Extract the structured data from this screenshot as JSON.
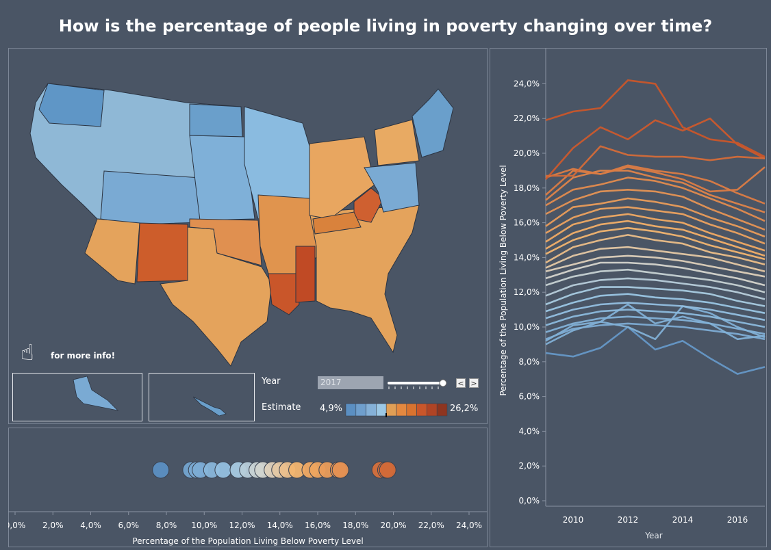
{
  "title": "How is the percentage of people living in poverty changing over time?",
  "info_text": "for more info!",
  "controls": {
    "year_label": "Year",
    "year_value": "2017",
    "estimate_label": "Estimate",
    "legend_min": "4,9%",
    "legend_max": "26,2%",
    "prev_symbol": "<",
    "next_symbol": ">"
  },
  "colors": {
    "background": "#4a5565",
    "low": "#5b8fc2",
    "mid_low": "#9cc8e5",
    "mid": "#d8d6cc",
    "mid_high": "#f4b36a",
    "high": "#c9562a",
    "legend": [
      "#5b8fc2",
      "#6f9fcd",
      "#85b1d8",
      "#9cc8e5",
      "#e09e55",
      "#e4883f",
      "#d9732f",
      "#c9562a",
      "#b04425",
      "#8e3520"
    ]
  },
  "chart_data": [
    {
      "type": "scatter",
      "title": "",
      "xlabel": "Percentage of the Population Living Below Poverty Level",
      "xlim": [
        0,
        24
      ],
      "tick_labels": [
        "0,0%",
        "2,0%",
        "4,0%",
        "6,0%",
        "8,0%",
        "10,0%",
        "12,0%",
        "14,0%",
        "16,0%",
        "18,0%",
        "20,0%",
        "22,0%",
        "24,0%"
      ],
      "x": [
        7.7,
        9.3,
        9.6,
        9.8,
        10.4,
        11.0,
        11.8,
        12.3,
        12.8,
        13.1,
        13.6,
        14.0,
        14.4,
        14.9,
        15.6,
        16.0,
        16.5,
        17.1,
        17.2,
        19.3,
        19.6,
        19.7
      ]
    },
    {
      "type": "line",
      "xlabel": "Year",
      "ylabel": "Percentage of the Population Living Below Poverty Level",
      "ylim": [
        0,
        25
      ],
      "xlim": [
        2009,
        2017
      ],
      "x_ticks": [
        "2010",
        "2012",
        "2014",
        "2016"
      ],
      "y_tick_labels": [
        "0,0%",
        "2,0%",
        "4,0%",
        "6,0%",
        "8,0%",
        "10,0%",
        "12,0%",
        "14,0%",
        "16,0%",
        "18,0%",
        "20,0%",
        "22,0%",
        "24,0%"
      ],
      "years": [
        2009,
        2010,
        2011,
        2012,
        2013,
        2014,
        2015,
        2016,
        2017
      ],
      "series": [
        {
          "name": "s1",
          "values": [
            21.9,
            22.4,
            22.6,
            24.2,
            24.0,
            21.5,
            20.8,
            20.6,
            19.8
          ]
        },
        {
          "name": "s2",
          "values": [
            18.5,
            20.3,
            21.5,
            20.8,
            21.9,
            21.3,
            22.0,
            20.5,
            19.7
          ]
        },
        {
          "name": "s3",
          "values": [
            18.7,
            18.7,
            20.4,
            19.9,
            19.8,
            19.8,
            19.6,
            19.8,
            19.7
          ]
        },
        {
          "name": "s4",
          "values": [
            17.6,
            19.0,
            18.8,
            19.2,
            18.9,
            18.5,
            17.8,
            17.9,
            19.2
          ]
        },
        {
          "name": "s5",
          "values": [
            18.6,
            19.1,
            18.8,
            19.3,
            19.0,
            18.8,
            18.4,
            17.7,
            17.1
          ]
        },
        {
          "name": "s6",
          "values": [
            17.3,
            18.6,
            19.0,
            19.0,
            18.6,
            18.3,
            17.6,
            17.1,
            16.6
          ]
        },
        {
          "name": "s7",
          "values": [
            17.0,
            17.9,
            18.2,
            18.6,
            18.4,
            18.0,
            17.4,
            16.8,
            16.1
          ]
        },
        {
          "name": "s8",
          "values": [
            16.5,
            17.3,
            17.8,
            17.9,
            17.8,
            17.5,
            16.8,
            16.2,
            15.6
          ]
        },
        {
          "name": "s9",
          "values": [
            15.8,
            16.9,
            17.1,
            17.4,
            17.2,
            16.9,
            16.3,
            15.8,
            15.2
          ]
        },
        {
          "name": "s10",
          "values": [
            15.4,
            16.3,
            16.8,
            16.9,
            16.7,
            16.5,
            15.9,
            15.4,
            14.8
          ]
        },
        {
          "name": "s11",
          "values": [
            14.9,
            15.9,
            16.3,
            16.5,
            16.2,
            16.0,
            15.4,
            14.9,
            14.4
          ]
        },
        {
          "name": "s12",
          "values": [
            14.5,
            15.4,
            15.9,
            16.1,
            15.8,
            15.6,
            15.1,
            14.6,
            14.1
          ]
        },
        {
          "name": "s13",
          "values": [
            14.2,
            15.0,
            15.5,
            15.7,
            15.5,
            15.2,
            14.7,
            14.3,
            13.9
          ]
        },
        {
          "name": "s14",
          "values": [
            13.7,
            14.6,
            15.0,
            15.3,
            15.0,
            14.8,
            14.3,
            14.0,
            13.6
          ]
        },
        {
          "name": "s15",
          "values": [
            13.4,
            14.1,
            14.5,
            14.6,
            14.4,
            14.2,
            14.0,
            13.6,
            13.2
          ]
        },
        {
          "name": "s16",
          "values": [
            13.2,
            13.6,
            14.0,
            14.1,
            14.0,
            13.8,
            13.5,
            13.2,
            12.9
          ]
        },
        {
          "name": "s17",
          "values": [
            12.8,
            13.3,
            13.7,
            13.7,
            13.6,
            13.4,
            13.1,
            12.8,
            12.4
          ]
        },
        {
          "name": "s18",
          "values": [
            12.4,
            12.9,
            13.2,
            13.3,
            13.1,
            12.9,
            12.7,
            12.4,
            12.0
          ]
        },
        {
          "name": "s19",
          "values": [
            11.8,
            12.4,
            12.7,
            12.8,
            12.7,
            12.5,
            12.3,
            12.0,
            11.6
          ]
        },
        {
          "name": "s20",
          "values": [
            11.3,
            11.9,
            12.3,
            12.3,
            12.2,
            12.1,
            11.9,
            11.5,
            11.2
          ]
        },
        {
          "name": "s21",
          "values": [
            10.9,
            11.4,
            11.8,
            11.9,
            11.7,
            11.6,
            11.4,
            11.1,
            10.8
          ]
        },
        {
          "name": "s22",
          "values": [
            10.5,
            11.0,
            11.3,
            11.4,
            11.3,
            11.2,
            11.0,
            10.7,
            10.4
          ]
        },
        {
          "name": "s23",
          "values": [
            10.1,
            10.6,
            10.9,
            11.0,
            10.9,
            10.8,
            10.6,
            10.3,
            10.0
          ]
        },
        {
          "name": "s24",
          "values": [
            9.7,
            10.2,
            10.5,
            10.6,
            10.5,
            10.4,
            10.2,
            9.9,
            9.6
          ]
        },
        {
          "name": "s25",
          "values": [
            9.3,
            9.9,
            10.1,
            10.2,
            10.1,
            10.0,
            9.8,
            9.6,
            9.3
          ]
        },
        {
          "name": "s26",
          "values": [
            9.0,
            9.8,
            10.3,
            11.3,
            10.2,
            10.6,
            10.2,
            9.3,
            9.5
          ]
        },
        {
          "name": "s27",
          "values": [
            9.2,
            10.1,
            10.3,
            10.0,
            9.3,
            11.2,
            10.8,
            10.0,
            9.4
          ]
        },
        {
          "name": "s28",
          "values": [
            8.5,
            8.3,
            8.8,
            10.0,
            8.7,
            9.2,
            8.2,
            7.3,
            7.7
          ]
        }
      ]
    }
  ]
}
